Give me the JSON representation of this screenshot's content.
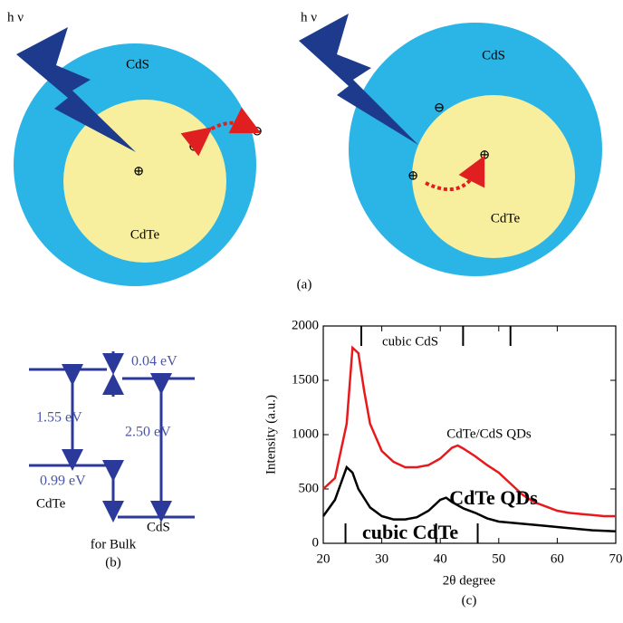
{
  "panel_a": {
    "left": {
      "light": "h ν",
      "shell": "CdS",
      "core": "CdTe",
      "symbols": [
        "⊕",
        "⊖",
        "⊖"
      ]
    },
    "right": {
      "light": "h ν",
      "shell": "CdS",
      "core": "CdTe",
      "symbols": [
        "⊖",
        "⊕",
        "⊕"
      ]
    },
    "caption": "(a)"
  },
  "panel_b": {
    "offset_top": "0.04 eV",
    "gap_cdte": "1.55 eV",
    "gap_cds": "2.50 eV",
    "offset_bottom": "0.99 eV",
    "label_cdte": "CdTe",
    "label_cds": "CdS",
    "note": "for Bulk",
    "caption": "(b)"
  },
  "chart_data": {
    "type": "line",
    "xlabel": "2θ degree",
    "ylabel": "Intensity (a.u.)",
    "caption": "(c)",
    "xlim": [
      20,
      70
    ],
    "ylim": [
      0,
      2000
    ],
    "xticks": [
      20,
      30,
      40,
      50,
      60,
      70
    ],
    "yticks": [
      0,
      500,
      1000,
      1500,
      2000
    ],
    "series": [
      {
        "name": "CdTe/CdS QDs",
        "color": "#e8191d",
        "x": [
          20,
          22,
          24,
          25,
          26,
          27,
          28,
          30,
          32,
          34,
          36,
          38,
          40,
          42,
          43,
          44,
          46,
          48,
          50,
          52,
          54,
          56,
          58,
          60,
          62,
          64,
          66,
          68,
          70
        ],
        "values": [
          500,
          600,
          1100,
          1800,
          1750,
          1400,
          1100,
          850,
          750,
          700,
          700,
          720,
          780,
          880,
          900,
          870,
          800,
          720,
          650,
          550,
          450,
          380,
          340,
          300,
          280,
          270,
          260,
          250,
          250
        ]
      },
      {
        "name": "CdTe QDs",
        "color": "#000000",
        "x": [
          20,
          22,
          24,
          25,
          26,
          28,
          30,
          32,
          34,
          36,
          38,
          40,
          41,
          42,
          44,
          46,
          48,
          50,
          54,
          58,
          62,
          66,
          70
        ],
        "values": [
          250,
          400,
          700,
          650,
          500,
          330,
          250,
          220,
          220,
          240,
          300,
          400,
          420,
          380,
          320,
          280,
          230,
          200,
          180,
          160,
          140,
          120,
          110
        ]
      }
    ],
    "reference_lines": [
      {
        "name": "cubic CdS",
        "x": [
          26.5,
          43.9,
          52
        ]
      },
      {
        "name": "cubic CdTe",
        "x": [
          23.8,
          39.3,
          46.4
        ]
      }
    ]
  }
}
